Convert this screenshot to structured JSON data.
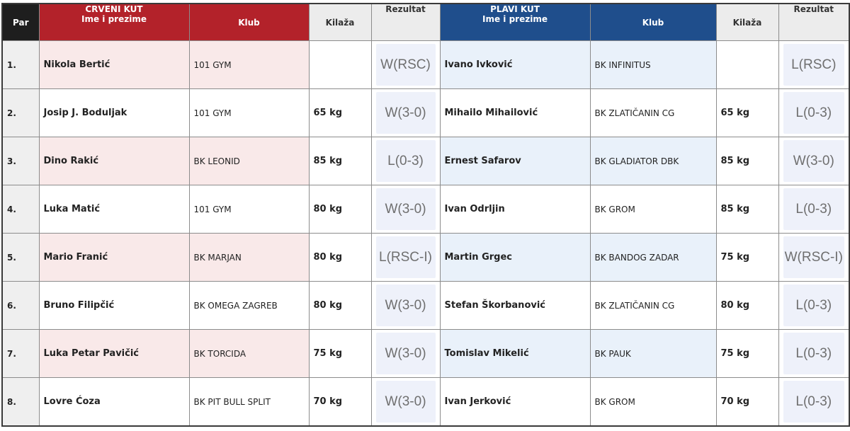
{
  "headers": {
    "par": "Par",
    "red_corner": "CRVENI KUT",
    "name": "Ime i prezime",
    "club": "Klub",
    "weight": "Kilaža",
    "result": "Rezultat",
    "blue_corner": "PLAVI KUT"
  },
  "colors": {
    "red_header": "#b3222a",
    "blue_header": "#1f4e8c",
    "red_tint": "#f9e9e9",
    "blue_tint": "#e9f1fa",
    "result_box": "#eef1fa",
    "separator": "#d6a43a"
  },
  "rows": [
    {
      "par": "1.",
      "red_name": "Nikola Bertić",
      "red_club": "101 GYM",
      "red_weight": "",
      "red_result": "W(RSC)",
      "blue_name": "Ivano Ivković",
      "blue_club": "BK INFINITUS",
      "blue_weight": "",
      "blue_result": "L(RSC)"
    },
    {
      "par": "2.",
      "red_name": "Josip J. Boduljak",
      "red_club": "101 GYM",
      "red_weight": "65 kg",
      "red_result": "W(3-0)",
      "blue_name": "Mihailo Mihailović",
      "blue_club": "BK ZLATIČANIN CG",
      "blue_weight": "65 kg",
      "blue_result": "L(0-3)"
    },
    {
      "par": "3.",
      "red_name": "Dino Rakić",
      "red_club": "BK LEONID",
      "red_weight": "85 kg",
      "red_result": "L(0-3)",
      "blue_name": "Ernest Safarov",
      "blue_club": "BK GLADIATOR DBK",
      "blue_weight": "85 kg",
      "blue_result": "W(3-0)"
    },
    {
      "par": "4.",
      "red_name": "Luka Matić",
      "red_club": "101 GYM",
      "red_weight": "80 kg",
      "red_result": "W(3-0)",
      "blue_name": "Ivan Odrljin",
      "blue_club": "BK GROM",
      "blue_weight": "85 kg",
      "blue_result": "L(0-3)"
    },
    {
      "par": "5.",
      "red_name": "Mario Franić",
      "red_club": "BK MARJAN",
      "red_weight": "80 kg",
      "red_result": "L(RSC-I)",
      "blue_name": "Martin Grgec",
      "blue_club": "BK BANDOG ZADAR",
      "blue_weight": "75 kg",
      "blue_result": "W(RSC-I)"
    },
    {
      "par": "6.",
      "red_name": "Bruno Filipčić",
      "red_club": "BK OMEGA ZAGREB",
      "red_weight": "80 kg",
      "red_result": "W(3-0)",
      "blue_name": "Stefan Škorbanović",
      "blue_club": "BK ZLATIČANIN CG",
      "blue_weight": "80 kg",
      "blue_result": "L(0-3)"
    },
    {
      "par": "7.",
      "red_name": "Luka Petar Pavičić",
      "red_club": "BK TORCIDA",
      "red_weight": "75 kg",
      "red_result": "W(3-0)",
      "blue_name": "Tomislav Mikelić",
      "blue_club": "BK PAUK",
      "blue_weight": "75 kg",
      "blue_result": "L(0-3)"
    },
    {
      "par": "8.",
      "red_name": "Lovre Ćoza",
      "red_club": "BK PIT BULL SPLIT",
      "red_weight": "70 kg",
      "red_result": "W(3-0)",
      "blue_name": "Ivan Jerković",
      "blue_club": "BK GROM",
      "blue_weight": "70 kg",
      "blue_result": "L(0-3)"
    }
  ]
}
